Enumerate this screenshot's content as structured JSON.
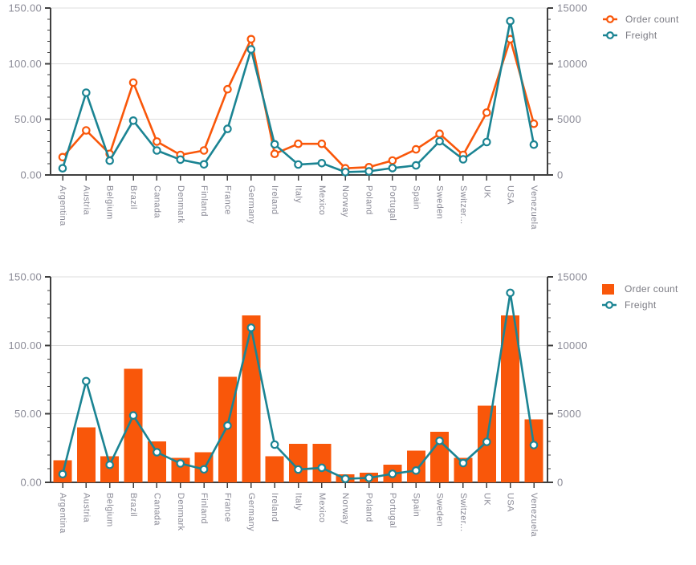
{
  "palette": {
    "orange": "#F9570A",
    "teal": "#1B8493",
    "grid": "#DCDCDC",
    "axis": "#3F3F3F",
    "label": "#8A8A96",
    "legend_text": "#7A7A82",
    "background": "#FFFFFF"
  },
  "chart_data": [
    {
      "type": "line",
      "title": "",
      "legend_position": "right-top",
      "categories": [
        "Argentina",
        "Austria",
        "Belgium",
        "Brazil",
        "Canada",
        "Denmark",
        "Finland",
        "France",
        "Germany",
        "Ireland",
        "Italy",
        "Mexico",
        "Norway",
        "Poland",
        "Portugal",
        "Spain",
        "Sweden",
        "Switzer...",
        "UK",
        "USA",
        "Venezuela"
      ],
      "left_axis": {
        "ticks": [
          "0.00",
          "50.00",
          "100.00",
          "150.00"
        ],
        "min": 0,
        "max": 150,
        "minor_step": 10
      },
      "right_axis": {
        "ticks": [
          "0",
          "5000",
          "10000",
          "15000"
        ],
        "min": 0,
        "max": 15000,
        "minor_step": 1000
      },
      "series": [
        {
          "name": "Order count",
          "type": "line",
          "axis": "left",
          "color": "#F9570A",
          "values": [
            16,
            40,
            19,
            83,
            30,
            18,
            22,
            77,
            122,
            19,
            28,
            28,
            6,
            7,
            13,
            23,
            37,
            18,
            56,
            122,
            46
          ]
        },
        {
          "name": "Freight",
          "type": "line",
          "axis": "right",
          "color": "#1B8493",
          "values": [
            598.58,
            7391.5,
            1280.14,
            4880.19,
            2198.7,
            1377.1,
            948.77,
            4140.44,
            11283.28,
            2755.24,
            935.0,
            1063.22,
            257.45,
            322.44,
            618.57,
            859.04,
            3032.12,
            1404.55,
            2954.4,
            13833.62,
            2725.44
          ]
        }
      ]
    },
    {
      "type": "combo",
      "title": "",
      "legend_position": "right-top",
      "categories": [
        "Argentina",
        "Austria",
        "Belgium",
        "Brazil",
        "Canada",
        "Denmark",
        "Finland",
        "France",
        "Germany",
        "Ireland",
        "Italy",
        "Mexico",
        "Norway",
        "Poland",
        "Portugal",
        "Spain",
        "Sweden",
        "Switzer...",
        "UK",
        "USA",
        "Venezuela"
      ],
      "left_axis": {
        "ticks": [
          "0.00",
          "50.00",
          "100.00",
          "150.00"
        ],
        "min": 0,
        "max": 150,
        "minor_step": 10
      },
      "right_axis": {
        "ticks": [
          "0",
          "5000",
          "10000",
          "15000"
        ],
        "min": 0,
        "max": 15000,
        "minor_step": 1000
      },
      "series": [
        {
          "name": "Order count",
          "type": "column",
          "axis": "left",
          "color": "#F9570A",
          "values": [
            16,
            40,
            19,
            83,
            30,
            18,
            22,
            77,
            122,
            19,
            28,
            28,
            6,
            7,
            13,
            23,
            37,
            18,
            56,
            122,
            46
          ]
        },
        {
          "name": "Freight",
          "type": "line",
          "axis": "right",
          "color": "#1B8493",
          "values": [
            598.58,
            7391.5,
            1280.14,
            4880.19,
            2198.7,
            1377.1,
            948.77,
            4140.44,
            11283.28,
            2755.24,
            935.0,
            1063.22,
            257.45,
            322.44,
            618.57,
            859.04,
            3032.12,
            1404.55,
            2954.4,
            13833.62,
            2725.44
          ]
        }
      ]
    }
  ]
}
